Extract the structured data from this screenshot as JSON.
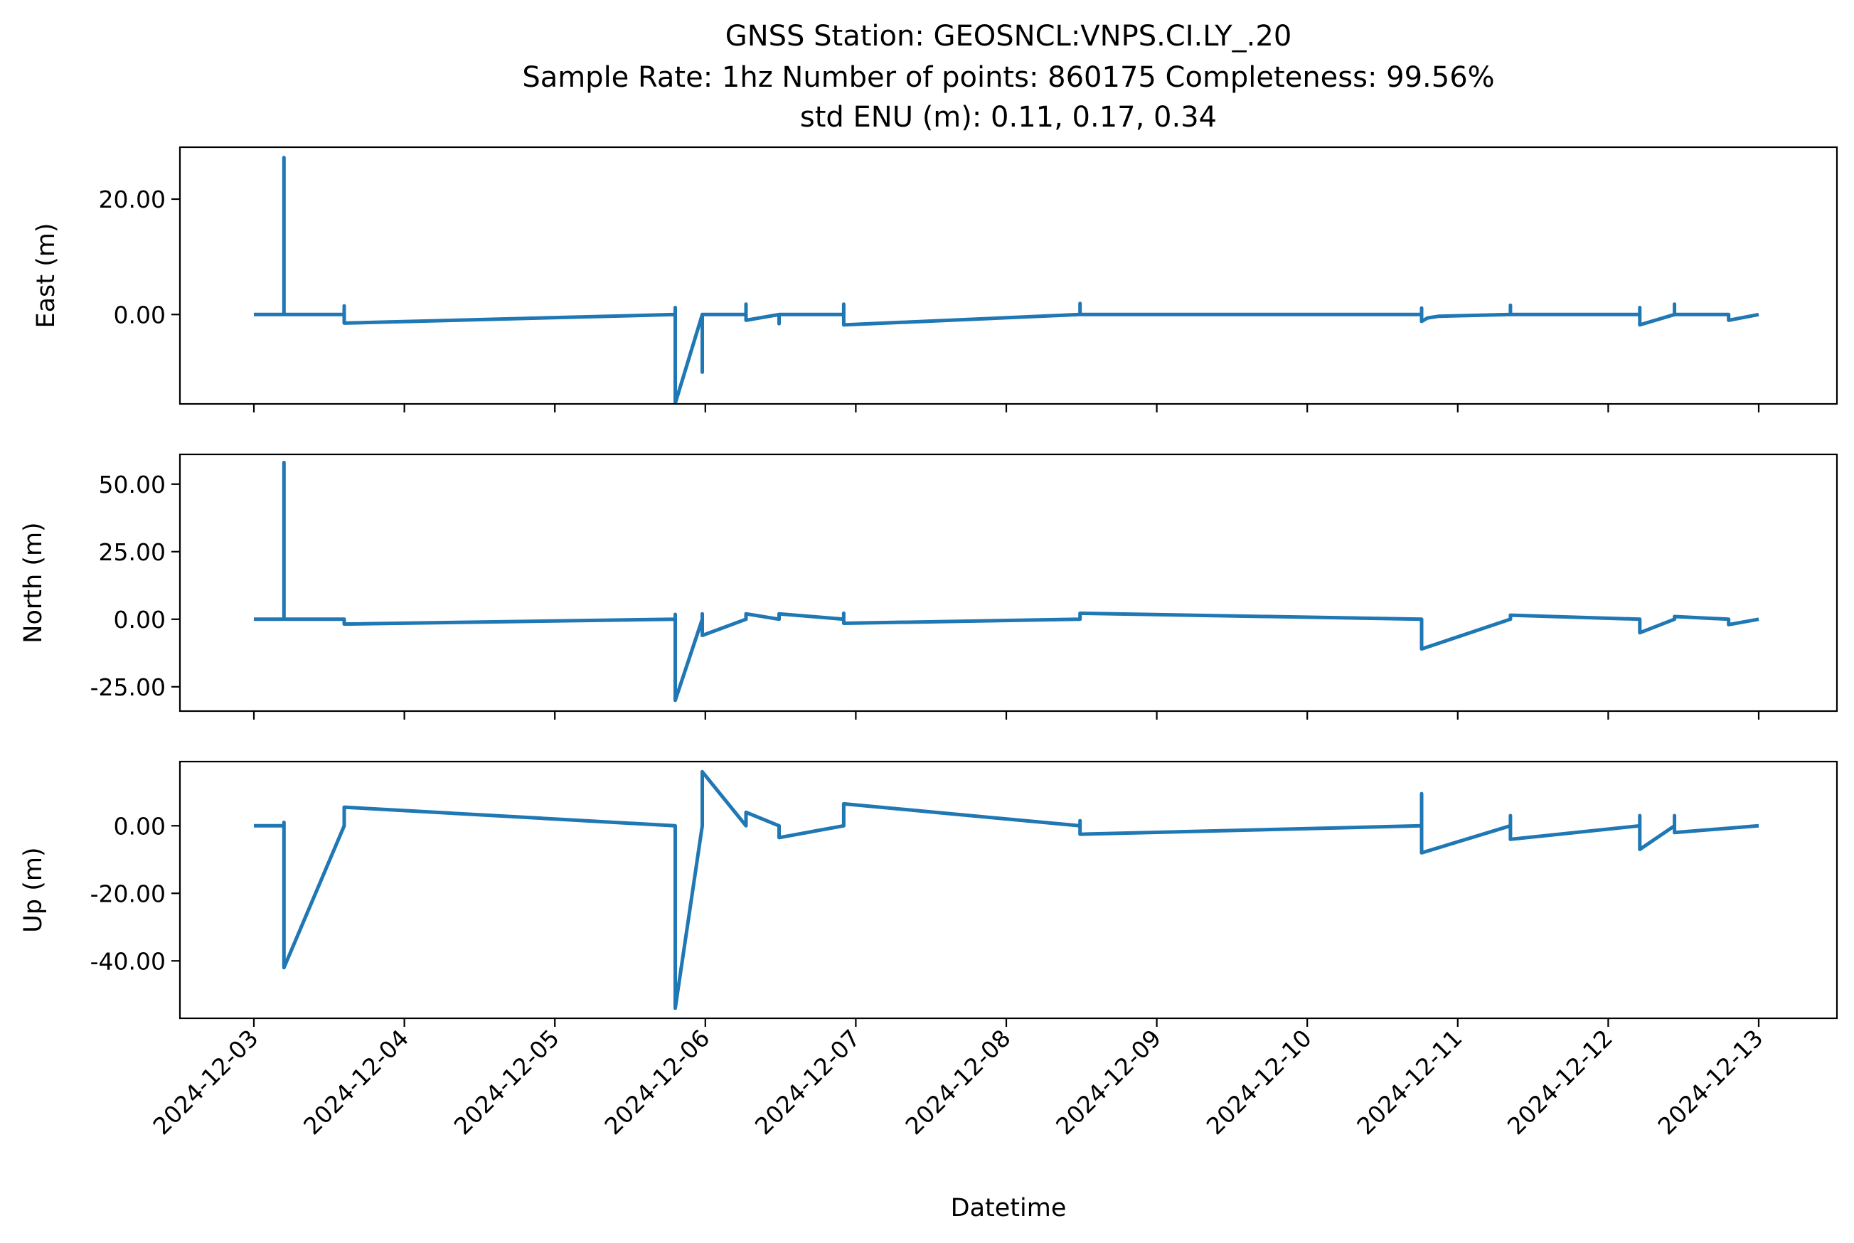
{
  "title": {
    "line1": "GNSS Station: GEOSNCL:VNPS.CI.LY_.20",
    "line2": "Sample Rate: 1hz    Number of points: 860175     Completeness:  99.56%",
    "line3": "std ENU (m):  0.11, 0.17, 0.34"
  },
  "chart_data": [
    {
      "type": "line",
      "ylabel": "East (m)",
      "xlim": [
        "2024-12-03T00:00",
        "2024-12-13T00:00"
      ],
      "ylim": [
        -15.5,
        29
      ],
      "yticks": [
        {
          "value": 0,
          "label": "0.00"
        },
        {
          "value": 20,
          "label": "20.00"
        }
      ],
      "color": "#1f77b4",
      "baseline": 0,
      "series": [
        {
          "x": [
            "2024-12-03T00:00",
            "2024-12-03T04:48",
            "2024-12-03T04:48",
            "2024-12-03T04:48",
            "2024-12-03T14:24",
            "2024-12-03T14:24",
            "2024-12-03T14:24",
            "2024-12-05T19:12",
            "2024-12-05T19:12",
            "2024-12-05T19:12",
            "2024-12-05T23:31",
            "2024-12-05T23:31",
            "2024-12-05T23:31",
            "2024-12-06T06:29",
            "2024-12-06T06:29",
            "2024-12-06T06:29",
            "2024-12-06T11:46",
            "2024-12-06T11:46",
            "2024-12-06T11:46",
            "2024-12-06T22:04",
            "2024-12-06T22:04",
            "2024-12-06T22:04",
            "2024-12-08T11:46",
            "2024-12-08T11:46",
            "2024-12-08T11:46",
            "2024-12-10T18:14",
            "2024-12-10T18:14",
            "2024-12-10T18:14",
            "2024-12-10T19:12",
            "2024-12-10T21:00",
            "2024-12-11T08:24",
            "2024-12-11T08:24",
            "2024-12-11T08:24",
            "2024-12-12T05:02",
            "2024-12-12T05:02",
            "2024-12-12T05:02",
            "2024-12-12T10:34",
            "2024-12-12T10:34",
            "2024-12-12T10:34",
            "2024-12-12T19:12",
            "2024-12-12T19:12",
            "2024-12-13T00:00"
          ],
          "y": [
            0,
            0,
            27.2,
            0,
            0,
            1.5,
            -1.5,
            0,
            1.2,
            -15.4,
            0,
            -10,
            0,
            0,
            1.8,
            -1,
            0,
            -1.6,
            0,
            0,
            1.8,
            -1.8,
            0,
            1.9,
            0,
            0,
            1.1,
            -1.2,
            -0.6,
            -0.3,
            0,
            1.6,
            0,
            0,
            1.2,
            -1.8,
            0,
            1.8,
            0,
            0,
            -1,
            0
          ]
        }
      ]
    },
    {
      "type": "line",
      "ylabel": "North (m)",
      "xlim": [
        "2024-12-03T00:00",
        "2024-12-13T00:00"
      ],
      "ylim": [
        -34,
        61
      ],
      "yticks": [
        {
          "value": -25,
          "label": "-25.00"
        },
        {
          "value": 0,
          "label": "0.00"
        },
        {
          "value": 25,
          "label": "25.00"
        },
        {
          "value": 50,
          "label": "50.00"
        }
      ],
      "color": "#1f77b4",
      "baseline": 0,
      "series": [
        {
          "x": [
            "2024-12-03T00:00",
            "2024-12-03T04:48",
            "2024-12-03T04:48",
            "2024-12-03T04:48",
            "2024-12-03T14:24",
            "2024-12-03T14:24",
            "2024-12-05T19:12",
            "2024-12-05T19:12",
            "2024-12-05T19:12",
            "2024-12-05T23:31",
            "2024-12-05T23:31",
            "2024-12-05T23:31",
            "2024-12-06T06:29",
            "2024-12-06T06:29",
            "2024-12-06T11:46",
            "2024-12-06T11:46",
            "2024-12-06T22:04",
            "2024-12-06T22:04",
            "2024-12-06T22:04",
            "2024-12-08T11:46",
            "2024-12-08T11:46",
            "2024-12-10T18:14",
            "2024-12-10T18:14",
            "2024-12-11T08:24",
            "2024-12-11T08:24",
            "2024-12-12T05:02",
            "2024-12-12T05:02",
            "2024-12-12T10:34",
            "2024-12-12T10:34",
            "2024-12-12T19:12",
            "2024-12-12T19:12",
            "2024-12-13T00:00"
          ],
          "y": [
            0,
            0,
            58,
            0,
            0,
            -1.8,
            0,
            1.8,
            -30,
            0,
            2,
            -6,
            0,
            2,
            0,
            2,
            0,
            2.2,
            -1.5,
            0,
            2.2,
            0,
            -11,
            0,
            1.5,
            0,
            -5,
            0,
            1,
            0,
            -2,
            0
          ]
        }
      ]
    },
    {
      "type": "line",
      "ylabel": "Up (m)",
      "xlim": [
        "2024-12-03T00:00",
        "2024-12-13T00:00"
      ],
      "ylim": [
        -57,
        19
      ],
      "yticks": [
        {
          "value": -40,
          "label": "-40.00"
        },
        {
          "value": -20,
          "label": "-20.00"
        },
        {
          "value": 0,
          "label": "0.00"
        }
      ],
      "color": "#1f77b4",
      "baseline": 0,
      "series": [
        {
          "x": [
            "2024-12-03T00:00",
            "2024-12-03T04:48",
            "2024-12-03T04:48",
            "2024-12-03T04:48",
            "2024-12-03T14:24",
            "2024-12-03T14:24",
            "2024-12-05T19:12",
            "2024-12-05T19:12",
            "2024-12-05T23:31",
            "2024-12-05T23:31",
            "2024-12-06T06:29",
            "2024-12-06T06:29",
            "2024-12-06T11:46",
            "2024-12-06T11:46",
            "2024-12-06T22:04",
            "2024-12-06T22:04",
            "2024-12-08T11:46",
            "2024-12-08T11:46",
            "2024-12-08T11:46",
            "2024-12-10T18:14",
            "2024-12-10T18:14",
            "2024-12-10T18:14",
            "2024-12-11T08:24",
            "2024-12-11T08:24",
            "2024-12-11T08:24",
            "2024-12-12T05:02",
            "2024-12-12T05:02",
            "2024-12-12T05:02",
            "2024-12-12T10:34",
            "2024-12-12T10:34",
            "2024-12-12T10:34",
            "2024-12-13T00:00"
          ],
          "y": [
            0,
            0,
            1,
            -42,
            0,
            5.5,
            0,
            -54,
            0,
            16,
            0,
            4,
            0,
            -3.5,
            0,
            6.5,
            0,
            1.5,
            -2.5,
            0,
            9.5,
            -8,
            0,
            3,
            -4,
            0,
            3,
            -7,
            0,
            3,
            -2,
            0
          ]
        }
      ]
    }
  ],
  "xaxis": {
    "label": "Datetime",
    "ticks": [
      "2024-12-03",
      "2024-12-04",
      "2024-12-05",
      "2024-12-06",
      "2024-12-07",
      "2024-12-08",
      "2024-12-09",
      "2024-12-10",
      "2024-12-11",
      "2024-12-12",
      "2024-12-13"
    ]
  }
}
